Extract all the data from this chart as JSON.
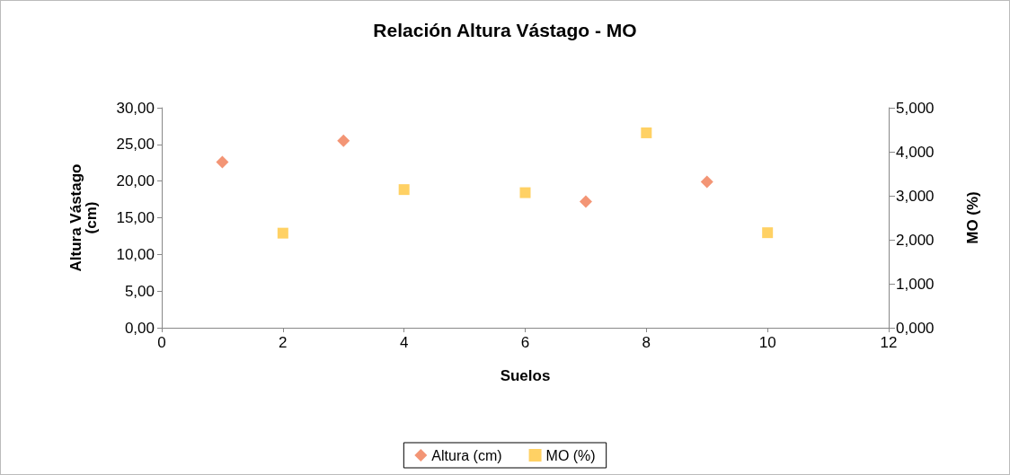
{
  "chart_data": {
    "type": "scatter",
    "title": "Relación Altura Vástago - MO",
    "xlabel": "Suelos",
    "ylabel": "Altura Vástago (cm)",
    "y2label": "MO (%)",
    "xlim": [
      0,
      12
    ],
    "xticks": [
      0,
      2,
      4,
      6,
      8,
      10,
      12
    ],
    "ylim": [
      0,
      30
    ],
    "yticks": [
      {
        "value": 0,
        "label": "0,00"
      },
      {
        "value": 5,
        "label": "5,00"
      },
      {
        "value": 10,
        "label": "10,00"
      },
      {
        "value": 15,
        "label": "15,00"
      },
      {
        "value": 20,
        "label": "20,00"
      },
      {
        "value": 25,
        "label": "25,00"
      },
      {
        "value": 30,
        "label": "30,00"
      }
    ],
    "y2lim": [
      0,
      5
    ],
    "y2ticks": [
      {
        "value": 0,
        "label": "0,000"
      },
      {
        "value": 1,
        "label": "1,000"
      },
      {
        "value": 2,
        "label": "2,000"
      },
      {
        "value": 3,
        "label": "3,000"
      },
      {
        "value": 4,
        "label": "4,000"
      },
      {
        "value": 5,
        "label": "5,000"
      }
    ],
    "grid": false,
    "legend": "bottom",
    "series": [
      {
        "name": "Altura (cm)",
        "color": "#f07a52",
        "marker": "diamond",
        "x": [
          1,
          3,
          7,
          9
        ],
        "values": [
          22.6,
          25.5,
          17.2,
          19.9
        ]
      },
      {
        "name": "MO (%)",
        "color": "#ffc53d",
        "marker": "square",
        "axis": "y2",
        "x": [
          2,
          4,
          6,
          8,
          10
        ],
        "values": [
          2.15,
          3.14,
          3.07,
          4.43,
          2.16
        ]
      }
    ]
  }
}
